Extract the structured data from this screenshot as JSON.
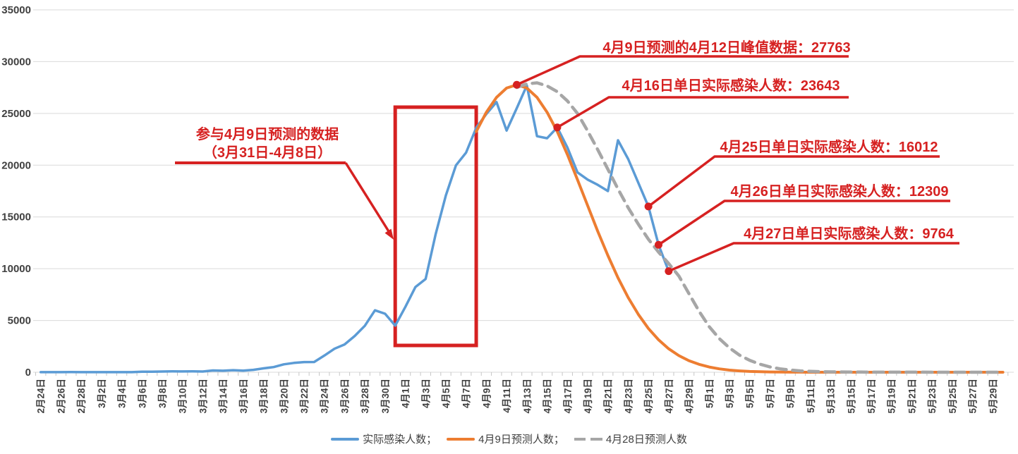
{
  "chart_data": {
    "type": "line",
    "title": "",
    "xlabel": "",
    "ylabel": "",
    "ylim": [
      0,
      35000
    ],
    "y_ticks": [
      0,
      5000,
      10000,
      15000,
      20000,
      25000,
      30000,
      35000
    ],
    "grid": true,
    "legend_position": "bottom",
    "x_label_step": 2,
    "dates": [
      "2月24日",
      "2月25日",
      "2月26日",
      "2月27日",
      "2月28日",
      "3月1日",
      "3月2日",
      "3月3日",
      "3月4日",
      "3月5日",
      "3月6日",
      "3月7日",
      "3月8日",
      "3月9日",
      "3月10日",
      "3月11日",
      "3月12日",
      "3月13日",
      "3月14日",
      "3月15日",
      "3月16日",
      "3月17日",
      "3月18日",
      "3月19日",
      "3月20日",
      "3月21日",
      "3月22日",
      "3月23日",
      "3月24日",
      "3月25日",
      "3月26日",
      "3月27日",
      "3月28日",
      "3月29日",
      "3月30日",
      "3月31日",
      "4月1日",
      "4月2日",
      "4月3日",
      "4月4日",
      "4月5日",
      "4月6日",
      "4月7日",
      "4月8日",
      "4月9日",
      "4月10日",
      "4月11日",
      "4月12日",
      "4月13日",
      "4月14日",
      "4月15日",
      "4月16日",
      "4月17日",
      "4月18日",
      "4月19日",
      "4月20日",
      "4月21日",
      "4月22日",
      "4月23日",
      "4月24日",
      "4月25日",
      "4月26日",
      "4月27日",
      "4月28日",
      "4月29日",
      "4月30日",
      "5月1日",
      "5月2日",
      "5月3日",
      "5月4日",
      "5月5日",
      "5月6日",
      "5月7日",
      "5月8日",
      "5月9日",
      "5月10日",
      "5月11日",
      "5月12日",
      "5月13日",
      "5月14日",
      "5月15日",
      "5月16日",
      "5月17日",
      "5月18日",
      "5月19日",
      "5月20日",
      "5月21日",
      "5月22日",
      "5月23日",
      "5月24日",
      "5月25日",
      "5月26日",
      "5月27日",
      "5月28日",
      "5月29日",
      "5月30日"
    ],
    "series": [
      {
        "name": "实际感染人数",
        "color": "#5B9BD5",
        "style": "solid",
        "width": 3.5,
        "start_index": 0,
        "values": [
          10,
          10,
          10,
          15,
          10,
          5,
          10,
          10,
          10,
          10,
          50,
          55,
          70,
          80,
          76,
          83,
          65,
          170,
          140,
          200,
          160,
          230,
          375,
          500,
          760,
          900,
          980,
          985,
          1610,
          2270,
          2680,
          3500,
          4480,
          5980,
          5650,
          4500,
          6310,
          8230,
          9000,
          13350,
          17080,
          19980,
          21220,
          23620,
          24940,
          26090,
          23340,
          25500,
          27700,
          22800,
          22600,
          23643,
          21700,
          19300,
          18600,
          18100,
          17500,
          22400,
          20600,
          18300,
          16012,
          12309,
          9764
        ]
      },
      {
        "name": "4月9日预测人数",
        "color": "#ED7D31",
        "style": "solid",
        "width": 4,
        "start_index": 43,
        "values": [
          23250,
          25110,
          26550,
          27450,
          27763,
          27450,
          26550,
          25110,
          23250,
          21020,
          18590,
          16090,
          13610,
          11270,
          9120,
          7220,
          5590,
          4230,
          3130,
          2270,
          1610,
          1120,
          760,
          505,
          325,
          205,
          126,
          76,
          45,
          26,
          15,
          8,
          5,
          3,
          2,
          2,
          2,
          2,
          2,
          2,
          2,
          2,
          2,
          2,
          2,
          2,
          2,
          2,
          2,
          2,
          2,
          2,
          2
        ]
      },
      {
        "name": "4月28日预测人数",
        "color": "#A6A6A6",
        "style": "dashed",
        "width": 4.5,
        "start_index": 47,
        "values": [
          27500,
          27850,
          27950,
          27650,
          27100,
          26200,
          25000,
          23300,
          21500,
          19600,
          17700,
          15900,
          14300,
          12840,
          11600,
          10500,
          9300,
          7600,
          5900,
          4400,
          3250,
          2350,
          1650,
          1150,
          780,
          510,
          330,
          210,
          130,
          85,
          55,
          35,
          25,
          18,
          13,
          10,
          8,
          6,
          5,
          4,
          4,
          3,
          3,
          3,
          2,
          2,
          2,
          2,
          2
        ]
      }
    ]
  },
  "annotations": {
    "accent_color": "#D62121",
    "note": {
      "line1": "参与4月9日预测的数据",
      "line2": "（3月31日-4月8日）",
      "box_day_start": "3月31日",
      "box_day_end": "4月8日"
    },
    "callouts": [
      {
        "text": "4月9日预测的4月12日峰值数据：27763",
        "date": "4月12日",
        "value": 27763
      },
      {
        "text": "4月16日单日实际感染人数：23643",
        "date": "4月16日",
        "value": 23643
      },
      {
        "text": "4月25日单日实际感染人数：16012",
        "date": "4月25日",
        "value": 16012
      },
      {
        "text": "4月26日单日实际感染人数：12309",
        "date": "4月26日",
        "value": 12309
      },
      {
        "text": "4月27日单日实际感染人数：9764",
        "date": "4月27日",
        "value": 9764
      }
    ]
  },
  "legend": {
    "items": [
      {
        "label": "实际感染人数；",
        "color": "#5B9BD5",
        "dashed": false
      },
      {
        "label": "4月9日预测人数；",
        "color": "#ED7D31",
        "dashed": false
      },
      {
        "label": "4月28日预测人数",
        "color": "#A6A6A6",
        "dashed": true
      }
    ]
  }
}
